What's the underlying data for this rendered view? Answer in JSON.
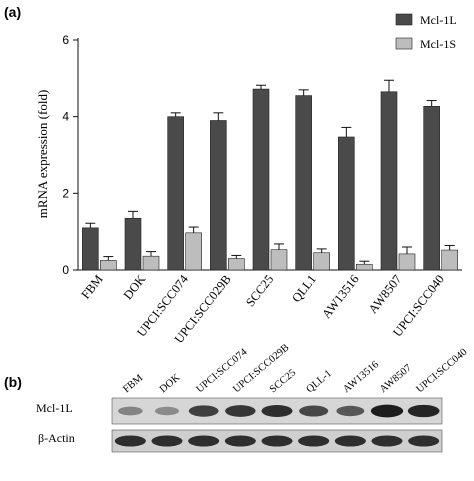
{
  "panels": {
    "a_label": "(a)",
    "b_label": "(b)"
  },
  "chart_data": {
    "type": "bar",
    "categories": [
      "FBM",
      "DOK",
      "UPCI:SCC074",
      "UPCI:SCC029B",
      "SCC25",
      "QLL1",
      "AW13516",
      "AW8507",
      "UPCI:SCC040"
    ],
    "series": [
      {
        "name": "Mcl-1L",
        "color": "#4a4a4a",
        "values": [
          1.1,
          1.35,
          4.0,
          3.9,
          4.72,
          4.55,
          3.47,
          4.65,
          4.27
        ],
        "errors": [
          0.12,
          0.18,
          0.1,
          0.2,
          0.1,
          0.15,
          0.25,
          0.3,
          0.15
        ]
      },
      {
        "name": "Mcl-1S",
        "color": "#bdbdbd",
        "values": [
          0.25,
          0.36,
          0.97,
          0.3,
          0.53,
          0.45,
          0.15,
          0.42,
          0.52
        ],
        "errors": [
          0.1,
          0.12,
          0.15,
          0.08,
          0.15,
          0.1,
          0.08,
          0.18,
          0.12
        ]
      }
    ],
    "ylabel": "mRNA expression (fold)",
    "xlabel": "",
    "ylim": [
      0,
      6
    ],
    "yticks": [
      0,
      2,
      4,
      6
    ],
    "legend_position": "top-right",
    "grid": false
  },
  "blot": {
    "lanes": [
      "FBM",
      "DOK",
      "UPCI:SCC074",
      "UPCI:SCC029B",
      "SCC25",
      "QLL-1",
      "AW13516",
      "AW8507",
      "UPCI:SCC040"
    ],
    "rows": [
      {
        "label": "Mcl-1L",
        "intensities": [
          0.35,
          0.3,
          0.75,
          0.8,
          0.85,
          0.7,
          0.6,
          0.95,
          0.9
        ]
      },
      {
        "label": "β-Actin",
        "intensities": [
          0.85,
          0.85,
          0.85,
          0.85,
          0.85,
          0.85,
          0.85,
          0.85,
          0.85
        ]
      }
    ]
  }
}
